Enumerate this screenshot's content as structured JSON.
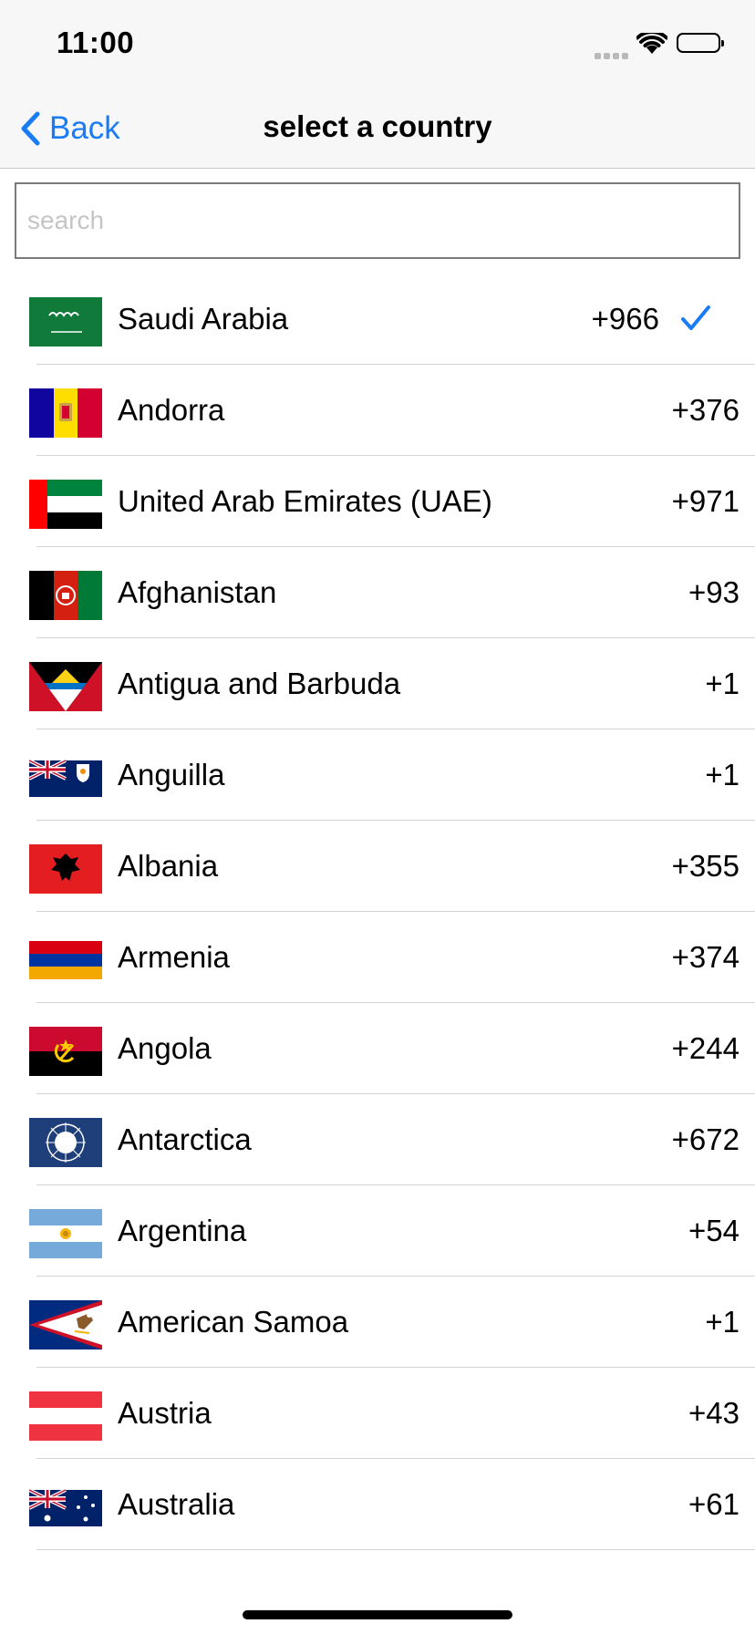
{
  "status_bar": {
    "time": "11:00"
  },
  "nav": {
    "back_label": "Back",
    "title": "select a country"
  },
  "search": {
    "placeholder": "search",
    "value": ""
  },
  "colors": {
    "accent": "#1a7cf5"
  },
  "countries": [
    {
      "name": "Saudi Arabia",
      "code": "+966",
      "selected": true
    },
    {
      "name": "Andorra",
      "code": "+376"
    },
    {
      "name": "United Arab Emirates (UAE)",
      "code": "+971"
    },
    {
      "name": "Afghanistan",
      "code": "+93"
    },
    {
      "name": "Antigua and Barbuda",
      "code": "+1"
    },
    {
      "name": "Anguilla",
      "code": "+1"
    },
    {
      "name": "Albania",
      "code": "+355"
    },
    {
      "name": "Armenia",
      "code": "+374"
    },
    {
      "name": "Angola",
      "code": "+244"
    },
    {
      "name": "Antarctica",
      "code": "+672"
    },
    {
      "name": "Argentina",
      "code": "+54"
    },
    {
      "name": "American Samoa",
      "code": "+1"
    },
    {
      "name": "Austria",
      "code": "+43"
    },
    {
      "name": "Australia",
      "code": "+61"
    }
  ]
}
